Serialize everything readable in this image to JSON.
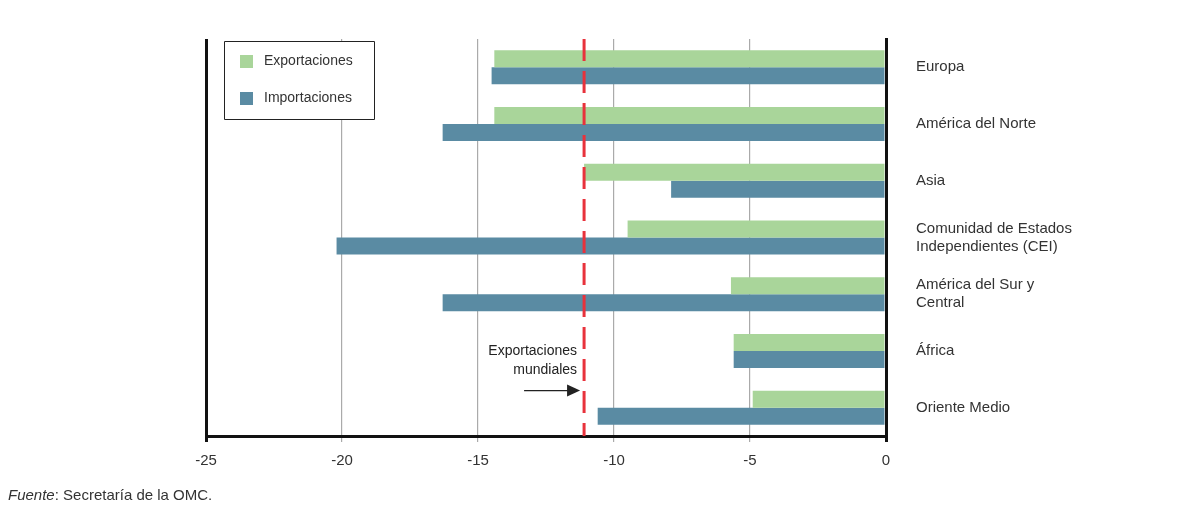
{
  "chart_data": {
    "type": "bar",
    "orientation": "horizontal",
    "categories": [
      "Europa",
      "América del Norte",
      "Asia",
      "Comunidad de Estados Independientes (CEI)",
      "América del Sur y Central",
      "África",
      "Oriente Medio"
    ],
    "series": [
      {
        "name": "Exportaciones",
        "color": "#a9d59a",
        "values": [
          -14.4,
          -14.4,
          -11.1,
          -9.5,
          -5.7,
          -5.6,
          -4.9
        ]
      },
      {
        "name": "Importaciones",
        "color": "#5a8ba3",
        "values": [
          -14.5,
          -16.3,
          -7.9,
          -20.2,
          -16.3,
          -5.6,
          -10.6
        ]
      }
    ],
    "xlim": [
      -25,
      0
    ],
    "xticks": [
      -25,
      -20,
      -15,
      -10,
      -5,
      0
    ],
    "grid": "x",
    "legend": "top left",
    "ref_lines": [
      {
        "axis": "x",
        "value": -11.1,
        "label": "Exportaciones mundiales",
        "color": "#e8323c",
        "line_style": "dashed"
      }
    ],
    "annotations": [
      "Fuente: Secretaría de la OMC."
    ]
  }
}
